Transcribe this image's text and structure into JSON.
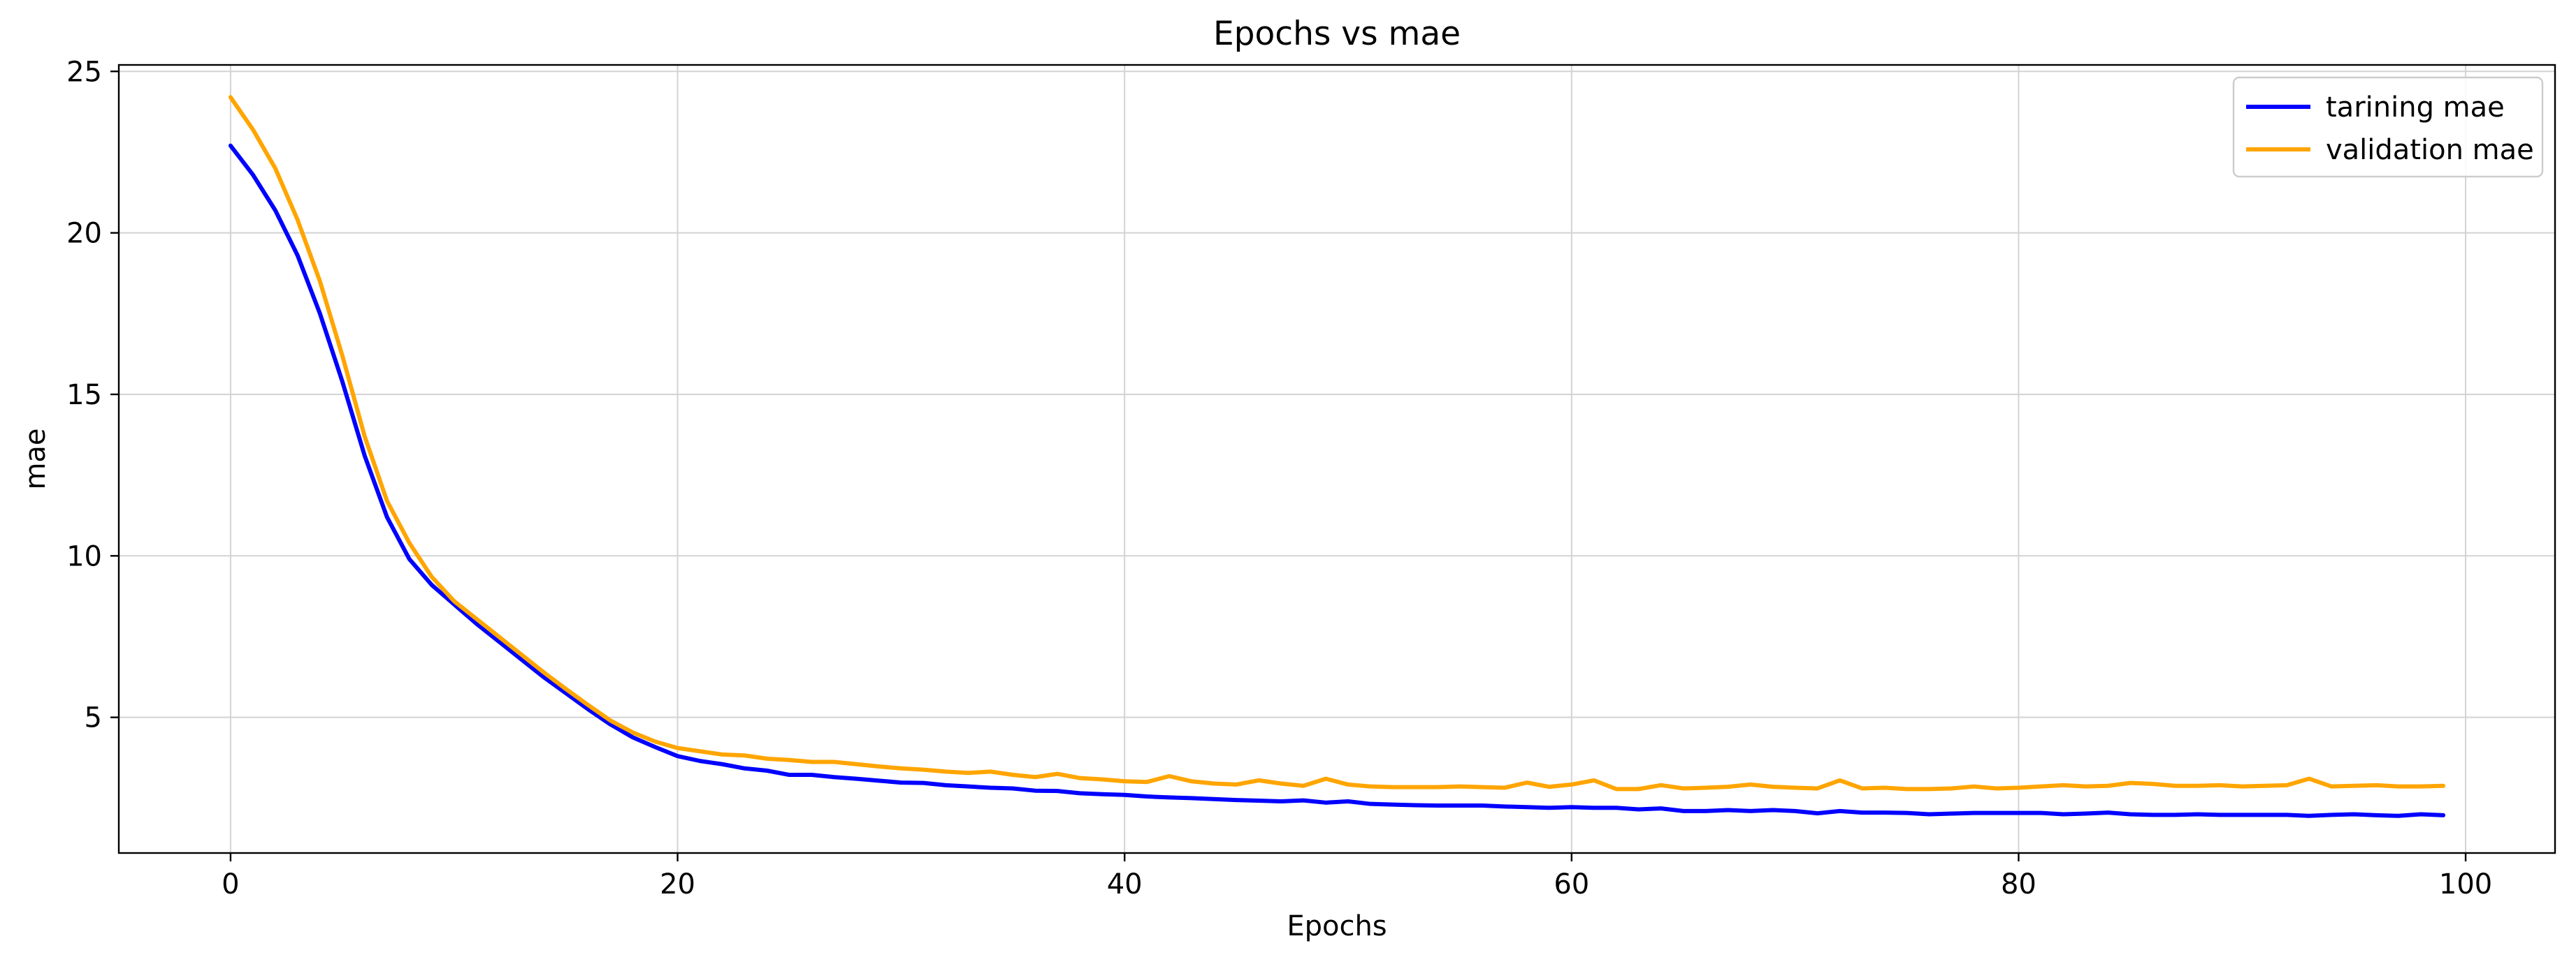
{
  "chart_data": {
    "type": "line",
    "title": "Epochs vs mae",
    "xlabel": "Epochs",
    "ylabel": "mae",
    "xlim": [
      -5,
      104
    ],
    "ylim": [
      0.8,
      25.2
    ],
    "xticks": [
      0,
      20,
      40,
      60,
      80,
      100
    ],
    "yticks": [
      5,
      10,
      15,
      20,
      25
    ],
    "grid": true,
    "legend_position": "top-right",
    "x": [
      0,
      1,
      2,
      3,
      4,
      5,
      6,
      7,
      8,
      9,
      10,
      11,
      12,
      13,
      14,
      15,
      16,
      17,
      18,
      19,
      20,
      21,
      22,
      23,
      24,
      25,
      26,
      27,
      28,
      29,
      30,
      31,
      32,
      33,
      34,
      35,
      36,
      37,
      38,
      39,
      40,
      41,
      42,
      43,
      44,
      45,
      46,
      47,
      48,
      49,
      50,
      51,
      52,
      53,
      54,
      55,
      56,
      57,
      58,
      59,
      60,
      61,
      62,
      63,
      64,
      65,
      66,
      67,
      68,
      69,
      70,
      71,
      72,
      73,
      74,
      75,
      76,
      77,
      78,
      79,
      80,
      81,
      82,
      83,
      84,
      85,
      86,
      87,
      88,
      89,
      90,
      91,
      92,
      93,
      94,
      95,
      96,
      97,
      98,
      99
    ],
    "series": [
      {
        "name": "tarining mae",
        "color": "#0000ff",
        "values": [
          22.7,
          21.8,
          20.7,
          19.3,
          17.5,
          15.4,
          13.1,
          11.2,
          9.9,
          9.1,
          8.5,
          7.9,
          7.35,
          6.8,
          6.25,
          5.75,
          5.25,
          4.78,
          4.38,
          4.08,
          3.8,
          3.65,
          3.55,
          3.42,
          3.35,
          3.22,
          3.22,
          3.15,
          3.1,
          3.04,
          2.98,
          2.97,
          2.9,
          2.86,
          2.82,
          2.8,
          2.73,
          2.72,
          2.65,
          2.62,
          2.6,
          2.55,
          2.52,
          2.5,
          2.47,
          2.44,
          2.42,
          2.4,
          2.43,
          2.36,
          2.4,
          2.32,
          2.3,
          2.28,
          2.27,
          2.27,
          2.27,
          2.24,
          2.22,
          2.2,
          2.22,
          2.2,
          2.2,
          2.15,
          2.18,
          2.1,
          2.1,
          2.13,
          2.1,
          2.13,
          2.1,
          2.03,
          2.1,
          2.05,
          2.05,
          2.04,
          2.0,
          2.02,
          2.04,
          2.04,
          2.04,
          2.04,
          2.0,
          2.02,
          2.05,
          2.0,
          1.98,
          1.98,
          2.0,
          1.98,
          1.98,
          1.98,
          1.98,
          1.95,
          1.98,
          2.0,
          1.97,
          1.95,
          2.0,
          1.97
        ]
      },
      {
        "name": "validation mae",
        "color": "#ffa500",
        "values": [
          24.2,
          23.2,
          22.0,
          20.4,
          18.5,
          16.2,
          13.7,
          11.7,
          10.4,
          9.35,
          8.6,
          8.05,
          7.5,
          6.95,
          6.4,
          5.88,
          5.38,
          4.9,
          4.53,
          4.25,
          4.05,
          3.95,
          3.85,
          3.82,
          3.72,
          3.68,
          3.62,
          3.62,
          3.55,
          3.48,
          3.42,
          3.38,
          3.32,
          3.28,
          3.32,
          3.22,
          3.15,
          3.25,
          3.12,
          3.08,
          3.02,
          3.0,
          3.18,
          3.02,
          2.95,
          2.92,
          3.05,
          2.95,
          2.88,
          3.1,
          2.92,
          2.86,
          2.84,
          2.84,
          2.84,
          2.86,
          2.84,
          2.82,
          2.98,
          2.85,
          2.92,
          3.05,
          2.78,
          2.78,
          2.9,
          2.8,
          2.82,
          2.85,
          2.92,
          2.85,
          2.82,
          2.8,
          3.05,
          2.8,
          2.82,
          2.78,
          2.78,
          2.8,
          2.86,
          2.8,
          2.82,
          2.86,
          2.9,
          2.86,
          2.88,
          2.97,
          2.94,
          2.88,
          2.88,
          2.9,
          2.86,
          2.88,
          2.9,
          3.1,
          2.86,
          2.88,
          2.9,
          2.86,
          2.86,
          2.88
        ]
      }
    ]
  }
}
